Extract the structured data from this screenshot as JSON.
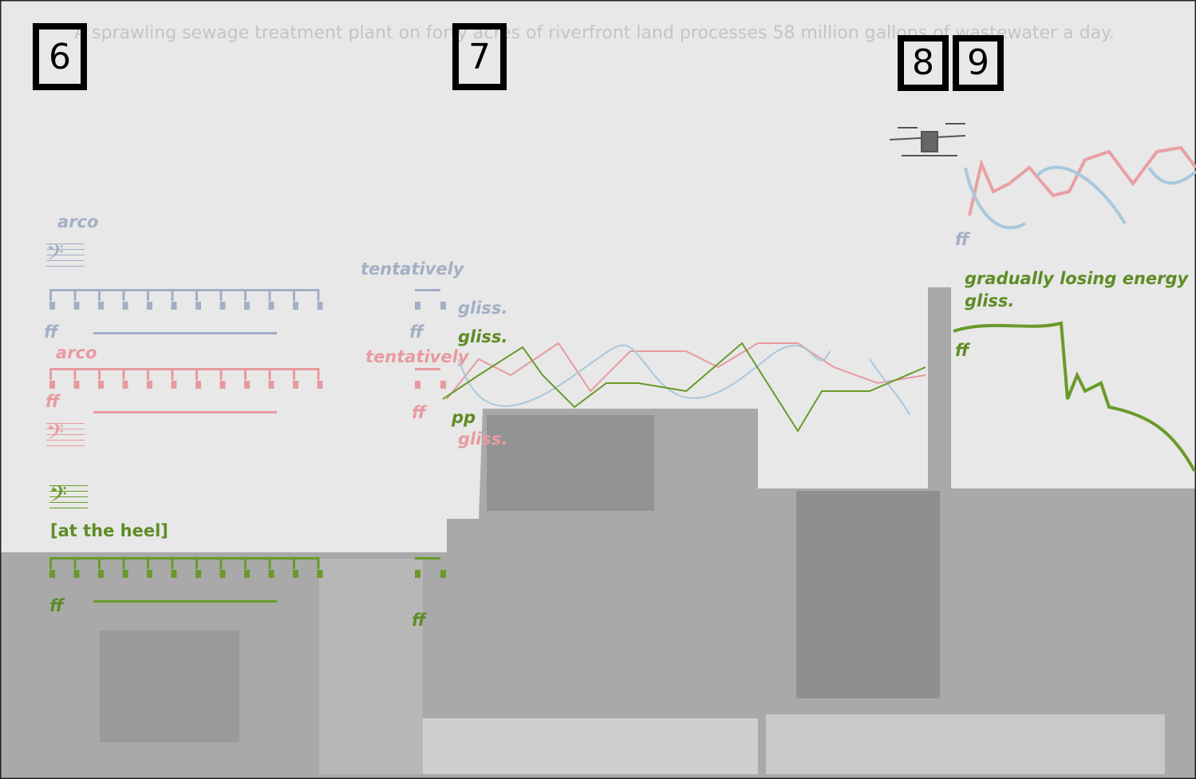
{
  "rehearsal_marks": [
    "6",
    "7",
    "8",
    "9"
  ],
  "caption": "A sprawling sewage treatment plant on forty acres of riverfront land processes 58 million gallons of wastewater a day.",
  "staff_1": {
    "marking": "arco",
    "dynamic": "ff"
  },
  "staff_2": {
    "marking": "arco",
    "dynamic": "ff"
  },
  "staff_3": {
    "marking": "[at the heel]",
    "dynamic": "ff"
  },
  "section_7": {
    "marking_1": "tentatively",
    "gliss_1": "gliss.",
    "dynamic_1": "ff",
    "gliss_2": "gliss.",
    "marking_2": "tentatively",
    "dynamic_2": "ff",
    "dynamic_3": "pp",
    "gliss_3": "gliss.",
    "dynamic_4": "ff"
  },
  "section_8": {
    "dynamic": "ff"
  },
  "section_9": {
    "marking": "gradually losing energy",
    "gliss": "gliss.",
    "dynamic": "ff"
  }
}
